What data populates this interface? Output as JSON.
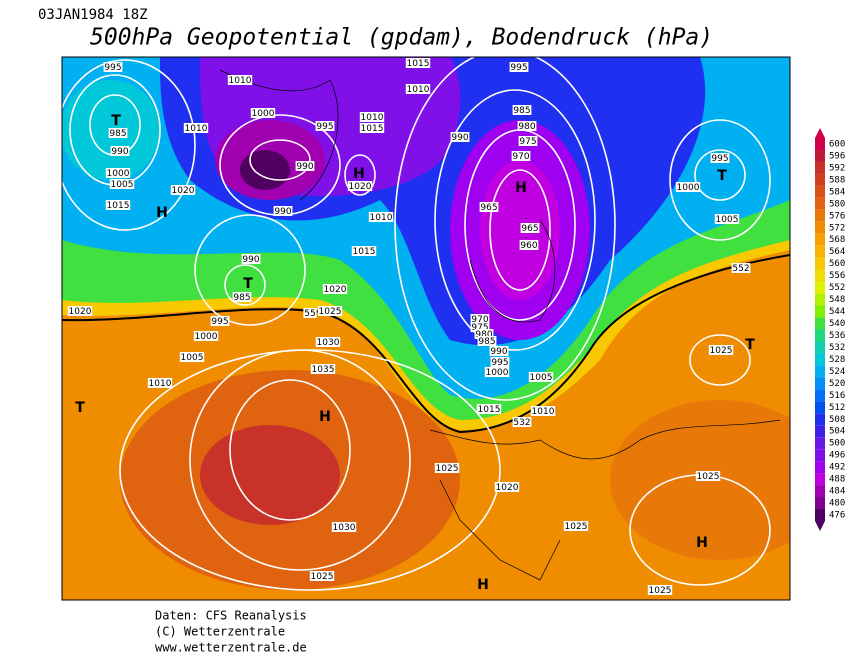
{
  "header": {
    "date": "03JAN1984 18Z",
    "title": "500hPa Geopotential (gpdam), Bodendruck (hPa)"
  },
  "isobar_labels": [
    "995",
    "1010",
    "1015",
    "1010",
    "995",
    "985",
    "990",
    "1000",
    "1005",
    "1015",
    "1010",
    "1000",
    "995",
    "1010",
    "1015",
    "990",
    "990",
    "1020",
    "1020",
    "1010",
    "1015",
    "990",
    "985",
    "995",
    "1000",
    "1020",
    "1025",
    "1020",
    "1005",
    "1010",
    "1030",
    "1035",
    "985",
    "980",
    "975",
    "970",
    "990",
    "965",
    "965",
    "960",
    "995",
    "1000",
    "1005",
    "970",
    "975",
    "980",
    "985",
    "990",
    "995",
    "1000",
    "1005",
    "1015",
    "1010",
    "1025",
    "1020",
    "1030",
    "1025",
    "1025",
    "1025",
    "1025",
    "1025"
  ],
  "height_labels": [
    "552",
    "55",
    "532"
  ],
  "pressure_centers": [
    "T",
    "H",
    "T",
    "H",
    "H",
    "T",
    "T",
    "H",
    "T",
    "H",
    "H"
  ],
  "legend": {
    "ticks": [
      600,
      596,
      592,
      588,
      584,
      580,
      576,
      572,
      568,
      564,
      560,
      556,
      552,
      548,
      544,
      540,
      536,
      532,
      528,
      524,
      520,
      516,
      512,
      508,
      504,
      500,
      496,
      492,
      488,
      484,
      480,
      476
    ],
    "colors": [
      "#d0004a",
      "#c01a3a",
      "#c83228",
      "#d04020",
      "#d85218",
      "#e06410",
      "#e87808",
      "#f08c00",
      "#f8a000",
      "#f8b400",
      "#f8c800",
      "#f0dc00",
      "#e0f000",
      "#b0f000",
      "#80f000",
      "#40e040",
      "#20d880",
      "#10d0b0",
      "#00c8d8",
      "#00b0f0",
      "#0090f8",
      "#0070f8",
      "#0050f0",
      "#2030f0",
      "#4020e8",
      "#6818e8",
      "#8010e8",
      "#a000f0",
      "#c000e0",
      "#a000b0",
      "#800090",
      "#500060"
    ]
  },
  "footer": {
    "source": "Daten: CFS Reanalysis",
    "copyright": "(C) Wetterzentrale",
    "url": "www.wetterzentrale.de"
  }
}
